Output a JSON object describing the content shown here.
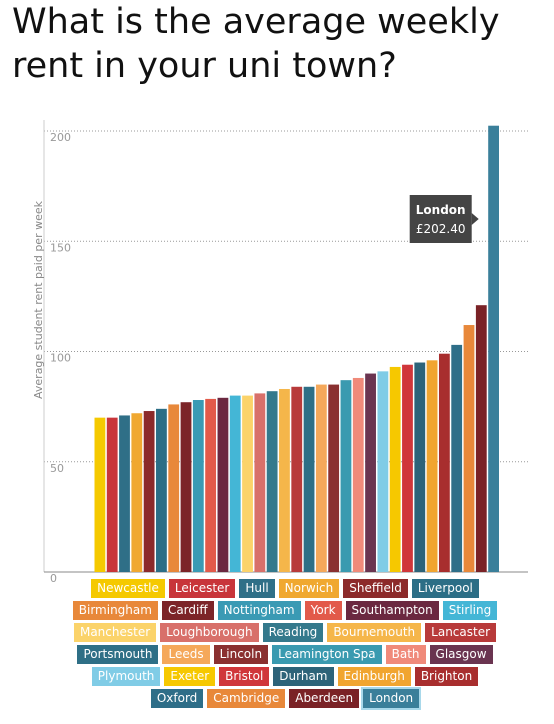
{
  "chart_data": {
    "type": "bar",
    "title": "What is the average weekly rent in your uni town?",
    "y_label": "Average student rent paid per week",
    "categories": [
      "Newcastle",
      "Leicester",
      "Hull",
      "Norwich",
      "Sheffield",
      "Liverpool",
      "Birmingham",
      "Cardiff",
      "Nottingham",
      "York",
      "Southampton",
      "Stirling",
      "Manchester",
      "Loughborough",
      "Reading",
      "Bournemouth",
      "Lancaster",
      "Portsmouth",
      "Leeds",
      "Lincoln",
      "Leamington Spa",
      "Bath",
      "Glasgow",
      "Plymouth",
      "Exeter",
      "Bristol",
      "Durham",
      "Edinburgh",
      "Brighton",
      "Oxford",
      "Cambridge",
      "Aberdeen",
      "London"
    ],
    "values": [
      70,
      70,
      71,
      72,
      73,
      74,
      76,
      77,
      78,
      78.5,
      79,
      80,
      80,
      81,
      82,
      83,
      84,
      84,
      85,
      85,
      87,
      88,
      90,
      91,
      93,
      94,
      95,
      96,
      99,
      103,
      112,
      121,
      202.4
    ],
    "colors": [
      "#f5c900",
      "#c8353a",
      "#2f6f87",
      "#f0a830",
      "#8c2a2a",
      "#2c6e86",
      "#e8883a",
      "#7c2428",
      "#3a9ab4",
      "#e25a4a",
      "#6b2840",
      "#44b6d6",
      "#fbd36a",
      "#d8706a",
      "#34798c",
      "#f5b64a",
      "#b83a3a",
      "#2e6f86",
      "#f5a85a",
      "#8a3030",
      "#3a9ab0",
      "#f08a7a",
      "#6a3450",
      "#80cce6",
      "#f6c800",
      "#d0363a",
      "#2d6379",
      "#f1a530",
      "#a82e2e",
      "#2e6e88",
      "#e8883a",
      "#7a2226",
      "#3a7f9a"
    ],
    "ylim": [
      0,
      200
    ],
    "yticks": [
      0,
      50,
      100,
      150,
      200
    ],
    "grid": true,
    "annotation": {
      "title": "London",
      "text": "£202.40"
    }
  }
}
